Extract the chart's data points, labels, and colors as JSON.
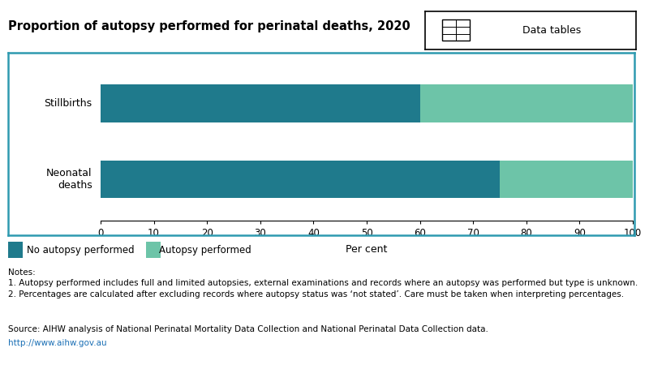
{
  "title": "Proportion of autopsy performed for perinatal deaths, 2020",
  "categories": [
    "Stillbirths",
    "Neonatal\ndeaths"
  ],
  "no_autopsy": [
    60,
    75
  ],
  "autopsy": [
    40,
    25
  ],
  "color_no_autopsy": "#1f7a8c",
  "color_autopsy": "#6dc4a8",
  "xlabel": "Per cent",
  "xlim": [
    0,
    100
  ],
  "xticks": [
    0,
    10,
    20,
    30,
    40,
    50,
    60,
    70,
    80,
    90,
    100
  ],
  "legend_no_autopsy": "No autopsy performed",
  "legend_autopsy": "Autopsy performed",
  "notes_line1": "Notes:",
  "notes_line2": "1. Autopsy performed includes full and limited autopsies, external examinations and records where an autopsy was performed but type is unknown.",
  "notes_line3": "2. Percentages are calculated after excluding records where autopsy status was ‘not stated’. Care must be taken when interpreting percentages.",
  "source_line1": "Source: AIHW analysis of National Perinatal Mortality Data Collection and National Perinatal Data Collection data.",
  "source_url": "http://www.aihw.gov.au",
  "data_tables_label": "Data tables",
  "border_color": "#2e9ab0",
  "background_color": "#ffffff"
}
